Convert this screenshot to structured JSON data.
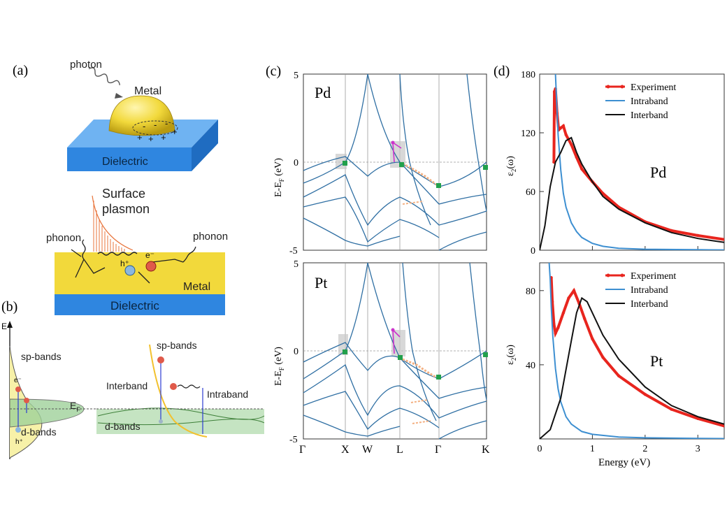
{
  "panel_labels": {
    "a": "(a)",
    "b": "(b)",
    "c": "(c)",
    "d": "(d)"
  },
  "panel_a": {
    "photon": "photon",
    "metal_top": "Metal",
    "dielectric_top": "Dielectric",
    "surface_plasmon_1": "Surface",
    "surface_plasmon_2": "plasmon",
    "phonon_left": "phonon",
    "phonon_right": "phonon",
    "hole": "h⁺",
    "electron": "e⁻",
    "metal_bottom": "Metal",
    "dielectric_bottom": "Dielectric",
    "colors": {
      "dielectric": "#3a8ee6",
      "metal": "#f2d93b",
      "plasmon": "#e8743b"
    }
  },
  "panel_b": {
    "energy_axis": "E",
    "sp_bands": "sp-bands",
    "d_bands": "d-bands",
    "fermi": "E",
    "fermi_sub": "F",
    "electron": "e⁻",
    "hole": "h⁺",
    "sp_bands_right": "sp-bands",
    "interband": "Interband",
    "intraband": "Intraband",
    "d_bands_right": "d-bands",
    "colors": {
      "d_band": "#9fd29a",
      "sp_band": "#f7f1a8",
      "sp_curve": "#f2c12e"
    }
  },
  "panel_c": {
    "x_tick_labels": [
      "Γ",
      "X",
      "W",
      "L",
      "Γ",
      "K"
    ],
    "ylabel": "E-E",
    "ylabel_sub": "F",
    "ylabel_unit": " (eV)",
    "y_ticks": [
      "5",
      "0",
      "-5"
    ],
    "pd_label": "Pd",
    "pt_label": "Pt",
    "colors": {
      "band": "#2f6fa3",
      "highlight": "#c8c8c8",
      "exp": "#f4b183",
      "dot": "#22a04b",
      "path": "#cc33cc"
    }
  },
  "chart_data": [
    {
      "type": "line",
      "panel": "d-top",
      "label": "Pd",
      "xlim": [
        0,
        3.5
      ],
      "ylim": [
        0,
        180
      ],
      "y_ticks": [
        0,
        60,
        120,
        180
      ],
      "ylabel": "ε",
      "ylabel_sub": "2",
      "ylabel_suffix": "(ω)",
      "series": [
        {
          "name": "Experiment",
          "color": "#e8251e",
          "x": [
            0.27,
            0.28,
            0.3,
            0.33,
            0.36,
            0.4,
            0.45,
            0.5,
            0.6,
            0.7,
            0.8,
            1.0,
            1.2,
            1.5,
            2.0,
            2.5,
            3.0,
            3.5
          ],
          "y": [
            90,
            162,
            165,
            140,
            123,
            125,
            127,
            118,
            108,
            95,
            83,
            70,
            58,
            44,
            29,
            20,
            15,
            11
          ]
        },
        {
          "name": "Intraband",
          "color": "#3d8fd1",
          "x": [
            0.3,
            0.32,
            0.35,
            0.4,
            0.45,
            0.5,
            0.6,
            0.7,
            0.8,
            1.0,
            1.2,
            1.5,
            2.0,
            3.0,
            3.5
          ],
          "y": [
            180,
            155,
            118,
            82,
            58,
            44,
            28,
            19,
            13,
            7,
            4,
            2,
            1,
            0.5,
            0.3
          ]
        },
        {
          "name": "Interband",
          "color": "#111111",
          "x": [
            0.0,
            0.1,
            0.2,
            0.3,
            0.4,
            0.5,
            0.6,
            0.7,
            0.8,
            1.0,
            1.2,
            1.5,
            2.0,
            2.5,
            3.0,
            3.5
          ],
          "y": [
            0,
            25,
            65,
            90,
            100,
            112,
            115,
            100,
            88,
            70,
            55,
            42,
            28,
            18,
            12,
            8
          ]
        }
      ]
    },
    {
      "type": "line",
      "panel": "d-bottom",
      "label": "Pt",
      "xlim": [
        0,
        3.5
      ],
      "ylim": [
        0,
        95
      ],
      "y_ticks": [
        40,
        80
      ],
      "x_ticks": [
        0,
        1,
        2,
        3
      ],
      "xlabel": "Energy (eV)",
      "ylabel": "ε",
      "ylabel_sub": "2",
      "ylabel_suffix": "(ω)",
      "series": [
        {
          "name": "Experiment",
          "color": "#e8251e",
          "x": [
            0.22,
            0.24,
            0.27,
            0.3,
            0.35,
            0.45,
            0.55,
            0.65,
            0.75,
            0.85,
            1.0,
            1.2,
            1.5,
            2.0,
            2.5,
            3.0,
            3.5
          ],
          "y": [
            87,
            74,
            62,
            57,
            60,
            68,
            76,
            80,
            73,
            65,
            54,
            44,
            34,
            24,
            16,
            11,
            7
          ]
        },
        {
          "name": "Intraband",
          "color": "#3d8fd1",
          "x": [
            0.18,
            0.2,
            0.22,
            0.25,
            0.3,
            0.35,
            0.4,
            0.5,
            0.6,
            0.8,
            1.0,
            1.5,
            2.0,
            3.0,
            3.5
          ],
          "y": [
            95,
            86,
            71,
            55,
            38,
            27,
            20,
            12,
            8,
            4,
            2.5,
            1,
            0.6,
            0.3,
            0.2
          ]
        },
        {
          "name": "Interband",
          "color": "#111111",
          "x": [
            0.0,
            0.2,
            0.4,
            0.6,
            0.7,
            0.8,
            0.9,
            1.0,
            1.2,
            1.5,
            2.0,
            2.5,
            3.0,
            3.5
          ],
          "y": [
            0,
            5,
            22,
            53,
            68,
            76,
            74,
            68,
            56,
            43,
            28,
            18,
            12,
            8
          ]
        }
      ]
    }
  ]
}
